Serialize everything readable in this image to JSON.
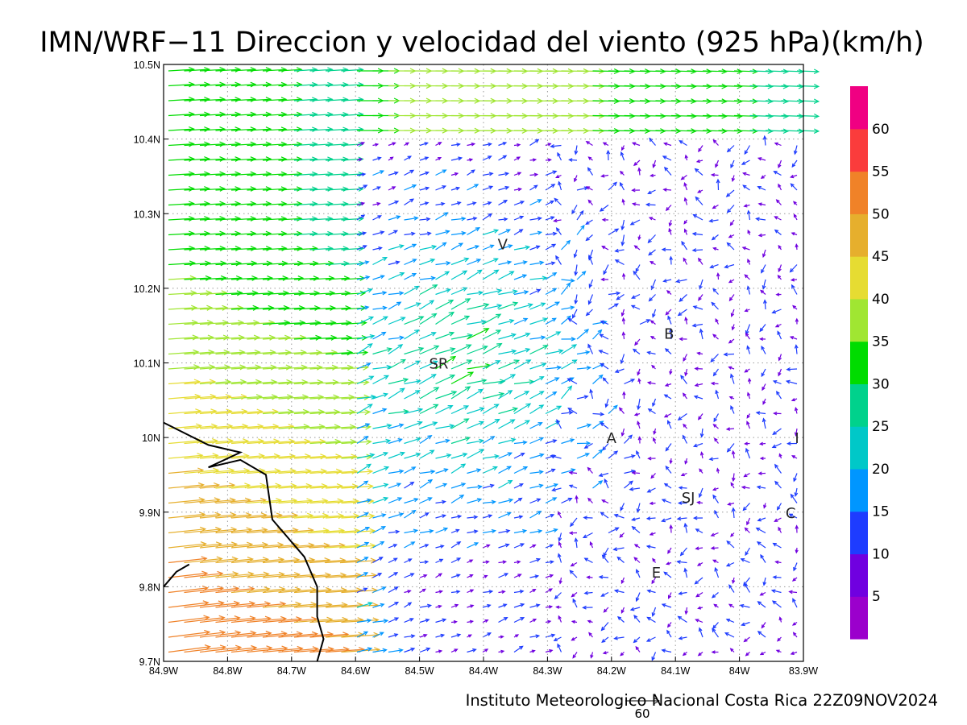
{
  "title": "IMN/WRF−11 Direccion y velocidad del viento (925 hPa)(km/h)",
  "footer": "Instituto Meteorologico Nacional Costa Rica 22Z09NOV2024",
  "reference_vector_label": "60",
  "map": {
    "lon_range": [
      -84.9,
      -83.9
    ],
    "lat_range": [
      9.7,
      10.5
    ],
    "x_ticks": [
      "84.9W",
      "84.8W",
      "84.7W",
      "84.6W",
      "84.5W",
      "84.4W",
      "84.3W",
      "84.2W",
      "84.1W",
      "84W",
      "83.9W"
    ],
    "y_ticks": [
      "9.7N",
      "9.8N",
      "9.9N",
      "10N",
      "10.1N",
      "10.2N",
      "10.3N",
      "10.4N",
      "10.5N"
    ],
    "grid": true,
    "cities": [
      {
        "label": "V",
        "lon": -84.37,
        "lat": 10.26
      },
      {
        "label": "SR",
        "lon": -84.47,
        "lat": 10.1
      },
      {
        "label": "B",
        "lon": -84.11,
        "lat": 10.14
      },
      {
        "label": "A",
        "lon": -84.2,
        "lat": 10.0
      },
      {
        "label": "I",
        "lon": -83.91,
        "lat": 10.0
      },
      {
        "label": "SJ",
        "lon": -84.08,
        "lat": 9.92
      },
      {
        "label": "C",
        "lon": -83.92,
        "lat": 9.9
      },
      {
        "label": "E",
        "lon": -84.13,
        "lat": 9.82
      }
    ],
    "coastline": [
      [
        -84.9,
        10.02
      ],
      [
        -84.83,
        9.99
      ],
      [
        -84.78,
        9.98
      ],
      [
        -84.83,
        9.96
      ],
      [
        -84.78,
        9.97
      ],
      [
        -84.74,
        9.95
      ],
      [
        -84.73,
        9.89
      ],
      [
        -84.71,
        9.87
      ],
      [
        -84.68,
        9.84
      ],
      [
        -84.66,
        9.8
      ],
      [
        -84.66,
        9.76
      ],
      [
        -84.65,
        9.73
      ],
      [
        -84.66,
        9.7
      ]
    ],
    "coastline2": [
      [
        -84.9,
        9.8
      ],
      [
        -84.88,
        9.82
      ],
      [
        -84.86,
        9.83
      ]
    ]
  },
  "colorbar": {
    "colors": [
      "#9b00cc",
      "#7000e0",
      "#1e3cff",
      "#0096ff",
      "#00c8c8",
      "#00d28c",
      "#00dc00",
      "#a0e632",
      "#e6dc32",
      "#e6af2d",
      "#f08228",
      "#fa3c3c",
      "#f00082"
    ],
    "labels": [
      "5",
      "10",
      "15",
      "20",
      "25",
      "30",
      "35",
      "40",
      "45",
      "50",
      "55",
      "60"
    ],
    "unit_step": 5
  }
}
